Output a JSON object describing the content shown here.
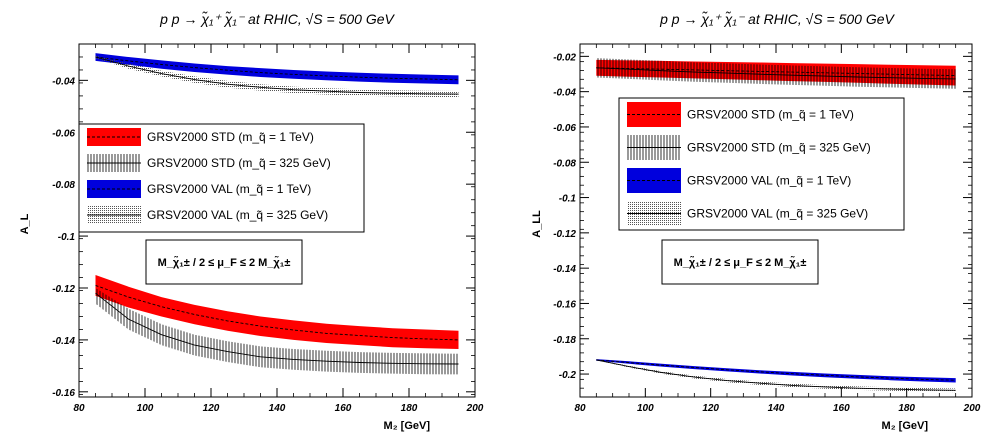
{
  "chart_data": [
    {
      "type": "area",
      "title": "p p → χ̃₁⁺ χ̃₁⁻ at RHIC, √S = 500 GeV",
      "xlabel": "M₂ [GeV]",
      "ylabel": "A_L",
      "xlim": [
        80,
        200
      ],
      "ylim": [
        -0.162,
        -0.026
      ],
      "xticks": [
        "80",
        "100",
        "120",
        "140",
        "160",
        "180",
        "200"
      ],
      "yticks": [
        "-0.04",
        "-0.06",
        "-0.08",
        "-0.1",
        "-0.12",
        "-0.14",
        "-0.16"
      ],
      "ytick_values": [
        -0.04,
        -0.06,
        -0.08,
        -0.1,
        -0.12,
        -0.14,
        -0.16
      ],
      "grid": false,
      "legend_position": "upper-left",
      "scale_box": "M_χ̃₁± / 2 ≤ μ_F ≤ 2 M_χ̃₁±",
      "x": [
        85,
        95,
        105,
        115,
        125,
        135,
        145,
        155,
        165,
        175,
        185,
        195
      ],
      "series": [
        {
          "name": "GRSV2000 STD (m_q̃ = 1 TeV)",
          "style": "red-band-dashed",
          "lower": [
            -0.123,
            -0.1275,
            -0.131,
            -0.134,
            -0.1365,
            -0.1385,
            -0.14,
            -0.1412,
            -0.142,
            -0.1428,
            -0.1432,
            -0.1435
          ],
          "upper": [
            -0.115,
            -0.1195,
            -0.1235,
            -0.1265,
            -0.129,
            -0.131,
            -0.1325,
            -0.1338,
            -0.1347,
            -0.1355,
            -0.136,
            -0.1365
          ],
          "center": [
            -0.119,
            -0.1235,
            -0.1272,
            -0.1302,
            -0.1327,
            -0.1347,
            -0.1362,
            -0.1375,
            -0.1383,
            -0.1391,
            -0.1396,
            -0.14
          ]
        },
        {
          "name": "GRSV2000 STD (m_q̃ = 325 GeV)",
          "style": "black-hatched-band-solid",
          "lower": [
            -0.126,
            -0.136,
            -0.142,
            -0.146,
            -0.1485,
            -0.1505,
            -0.1515,
            -0.1522,
            -0.1527,
            -0.153,
            -0.1532,
            -0.1533
          ],
          "upper": [
            -0.12,
            -0.128,
            -0.134,
            -0.138,
            -0.1405,
            -0.1425,
            -0.1435,
            -0.1442,
            -0.1447,
            -0.145,
            -0.1452,
            -0.1453
          ],
          "center": [
            -0.122,
            -0.132,
            -0.138,
            -0.142,
            -0.1445,
            -0.1465,
            -0.1475,
            -0.1482,
            -0.1487,
            -0.149,
            -0.1492,
            -0.1493
          ]
        },
        {
          "name": "GRSV2000 VAL (m_q̃ = 1 TeV)",
          "style": "blue-band-dashed",
          "lower": [
            -0.0325,
            -0.034,
            -0.0355,
            -0.0368,
            -0.0378,
            -0.0387,
            -0.0394,
            -0.04,
            -0.0405,
            -0.0409,
            -0.0412,
            -0.0415
          ],
          "upper": [
            -0.0295,
            -0.031,
            -0.0323,
            -0.0335,
            -0.0345,
            -0.0353,
            -0.036,
            -0.0366,
            -0.0371,
            -0.0375,
            -0.0378,
            -0.0381
          ],
          "center": [
            -0.031,
            -0.0325,
            -0.0339,
            -0.0351,
            -0.0361,
            -0.037,
            -0.0377,
            -0.0383,
            -0.0388,
            -0.0392,
            -0.0395,
            -0.0398
          ]
        },
        {
          "name": "GRSV2000 VAL (m_q̃ = 325 GeV)",
          "style": "black-dotted-band-solid",
          "lower": [
            -0.0315,
            -0.0355,
            -0.0385,
            -0.041,
            -0.0428,
            -0.044,
            -0.0449,
            -0.0455,
            -0.0459,
            -0.0462,
            -0.0464,
            -0.0465
          ],
          "upper": [
            -0.0305,
            -0.0335,
            -0.0363,
            -0.0385,
            -0.0402,
            -0.0415,
            -0.0424,
            -0.043,
            -0.0435,
            -0.0438,
            -0.044,
            -0.0441
          ],
          "center": [
            -0.031,
            -0.0345,
            -0.0374,
            -0.0397,
            -0.0415,
            -0.0427,
            -0.0436,
            -0.0442,
            -0.0447,
            -0.045,
            -0.0452,
            -0.0453
          ]
        }
      ]
    },
    {
      "type": "area",
      "title": "p p → χ̃₁⁺ χ̃₁⁻ at RHIC, √S = 500 GeV",
      "xlabel": "M₂ [GeV]",
      "ylabel": "A_LL",
      "xlim": [
        80,
        200
      ],
      "ylim": [
        -0.213,
        -0.013
      ],
      "xticks": [
        "80",
        "100",
        "120",
        "140",
        "160",
        "180",
        "200"
      ],
      "yticks": [
        "-0.02",
        "-0.04",
        "-0.06",
        "-0.08",
        "-0.1",
        "-0.12",
        "-0.14",
        "-0.16",
        "-0.18",
        "-0.2"
      ],
      "ytick_values": [
        -0.02,
        -0.04,
        -0.06,
        -0.08,
        -0.1,
        -0.12,
        -0.14,
        -0.16,
        -0.18,
        -0.2
      ],
      "grid": false,
      "legend_position": "upper-left",
      "scale_box": "M_χ̃₁± / 2 ≤ μ_F ≤ 2 M_χ̃₁±",
      "x": [
        85,
        95,
        105,
        115,
        125,
        135,
        145,
        155,
        165,
        175,
        185,
        195
      ],
      "series": [
        {
          "name": "GRSV2000 STD (m_q̃ = 1 TeV)",
          "style": "red-band-dashed",
          "lower": [
            -0.031,
            -0.0315,
            -0.032,
            -0.0325,
            -0.033,
            -0.0335,
            -0.034,
            -0.0345,
            -0.035,
            -0.0355,
            -0.036,
            -0.0365
          ],
          "upper": [
            -0.022,
            -0.0223,
            -0.0226,
            -0.0229,
            -0.0232,
            -0.0235,
            -0.0238,
            -0.0241,
            -0.0244,
            -0.0247,
            -0.025,
            -0.0253
          ],
          "center": [
            -0.0265,
            -0.0269,
            -0.0273,
            -0.0277,
            -0.0281,
            -0.0285,
            -0.0289,
            -0.0293,
            -0.0297,
            -0.0301,
            -0.0305,
            -0.0309
          ]
        },
        {
          "name": "GRSV2000 STD (m_q̃ = 325 GeV)",
          "style": "black-hatched-band-solid",
          "lower": [
            -0.032,
            -0.0328,
            -0.0336,
            -0.0344,
            -0.035,
            -0.0356,
            -0.0362,
            -0.0367,
            -0.0372,
            -0.0376,
            -0.038,
            -0.0383
          ],
          "upper": [
            -0.021,
            -0.0218,
            -0.0226,
            -0.0234,
            -0.024,
            -0.0246,
            -0.0252,
            -0.0257,
            -0.0262,
            -0.0266,
            -0.027,
            -0.0273
          ],
          "center": [
            -0.0265,
            -0.0273,
            -0.0281,
            -0.0289,
            -0.0295,
            -0.0301,
            -0.0307,
            -0.0312,
            -0.0317,
            -0.0321,
            -0.0325,
            -0.0328
          ]
        },
        {
          "name": "GRSV2000 VAL (m_q̃ = 1 TeV)",
          "style": "blue-band-dashed",
          "lower": [
            -0.1925,
            -0.1942,
            -0.1958,
            -0.1972,
            -0.1985,
            -0.1997,
            -0.2008,
            -0.2018,
            -0.2027,
            -0.2035,
            -0.2042,
            -0.2048
          ],
          "upper": [
            -0.1915,
            -0.1928,
            -0.1942,
            -0.1955,
            -0.1967,
            -0.1978,
            -0.1988,
            -0.1997,
            -0.2005,
            -0.2012,
            -0.2018,
            -0.2023
          ],
          "center": [
            -0.192,
            -0.1935,
            -0.195,
            -0.1963,
            -0.1976,
            -0.1987,
            -0.1998,
            -0.2007,
            -0.2016,
            -0.2023,
            -0.203,
            -0.2035
          ]
        },
        {
          "name": "GRSV2000 VAL (m_q̃ = 325 GeV)",
          "style": "black-dotted-band-solid",
          "lower": [
            -0.1922,
            -0.1963,
            -0.1998,
            -0.2025,
            -0.2046,
            -0.2062,
            -0.2074,
            -0.2083,
            -0.209,
            -0.2095,
            -0.2099,
            -0.2102
          ],
          "upper": [
            -0.1918,
            -0.1953,
            -0.1984,
            -0.2009,
            -0.2028,
            -0.2043,
            -0.2054,
            -0.2063,
            -0.207,
            -0.2075,
            -0.2079,
            -0.2082
          ],
          "center": [
            -0.192,
            -0.1958,
            -0.1991,
            -0.2017,
            -0.2037,
            -0.2052,
            -0.2064,
            -0.2073,
            -0.208,
            -0.2085,
            -0.2089,
            -0.2092
          ]
        }
      ]
    }
  ],
  "colors": {
    "red_band": "#ff0000",
    "blue_band": "#0000dd",
    "line": "#000000"
  }
}
